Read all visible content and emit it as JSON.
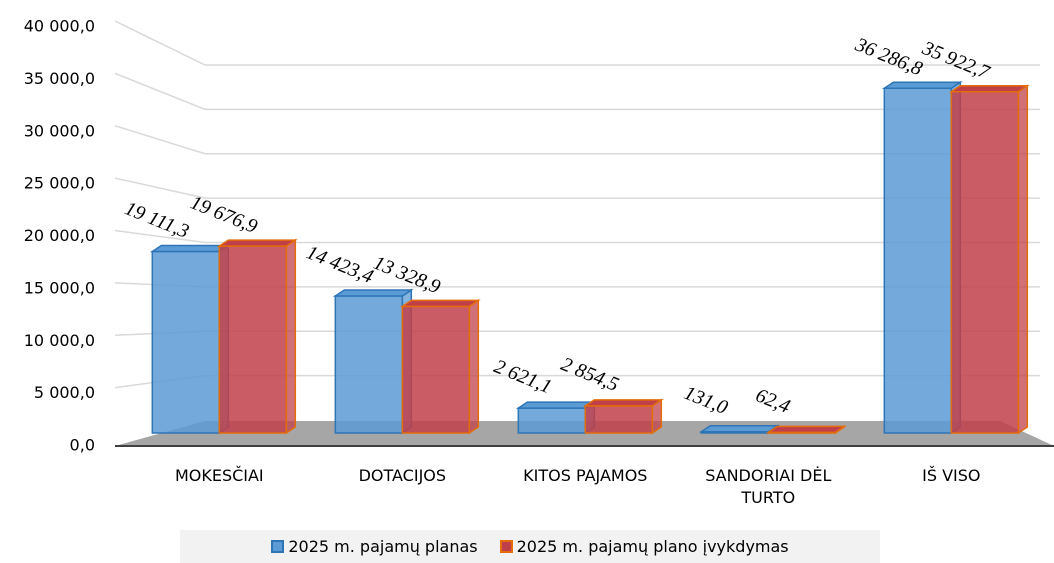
{
  "chart_data": {
    "type": "bar3d",
    "categories": [
      "MOKESČIAI",
      "DOTACIJOS",
      "KITOS PAJAMOS",
      "SANDORIAI DĖL TURTO",
      "IŠ VISO"
    ],
    "series": [
      {
        "name": "2025 m. pajamų planas",
        "color": "#5b9bd5",
        "edge": "#2e75b6",
        "values": [
          19111.3,
          14423.4,
          2621.1,
          131.0,
          36286.8
        ],
        "value_labels": [
          "19 111,3",
          "14 423,4",
          "2 621,1",
          "131,0",
          "36 286,8"
        ]
      },
      {
        "name": "2025 m. pajamų plano įvykdymas",
        "color": "#c0404a",
        "edge": "#e46c0a",
        "values": [
          19676.9,
          13328.9,
          2854.5,
          62.4,
          35922.7
        ],
        "value_labels": [
          "19 676,9",
          "13 328,9",
          "2 854,5",
          "62,4",
          "35 922,7"
        ]
      }
    ],
    "ylim": [
      0,
      40000
    ],
    "yticks": [
      {
        "value": 0,
        "label": "0,0"
      },
      {
        "value": 5000,
        "label": "5 000,0"
      },
      {
        "value": 10000,
        "label": "10 000,0"
      },
      {
        "value": 15000,
        "label": "15 000,0"
      },
      {
        "value": 20000,
        "label": "20 000,0"
      },
      {
        "value": 25000,
        "label": "25 000,0"
      },
      {
        "value": 30000,
        "label": "30 000,0"
      },
      {
        "value": 35000,
        "label": "35 000,0"
      },
      {
        "value": 40000,
        "label": "40 000,0"
      }
    ],
    "grid": true
  }
}
